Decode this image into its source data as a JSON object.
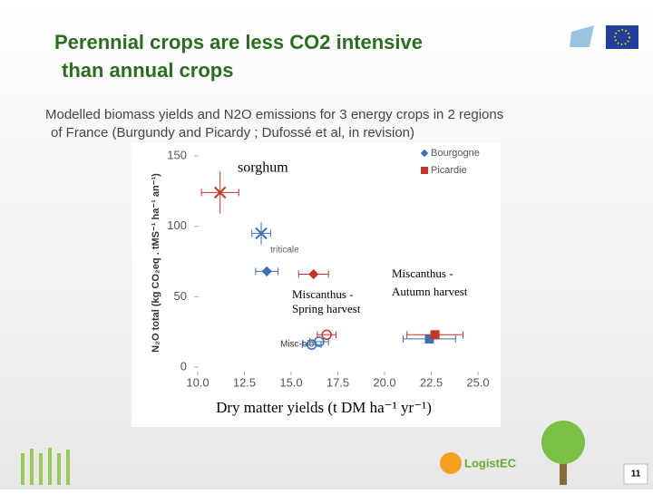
{
  "slide": {
    "title_lines": [
      "Perennial crops are less CO2 intensive",
      "than annual crops"
    ],
    "subtitle_lines": [
      "Modelled biomass yields and N2O emissions for 3 energy crops in 2 regions",
      "of France (Burgundy and Picardy ; Dufossé et al, in revision)"
    ],
    "logo_text": "LogistEC",
    "page_number": "11"
  },
  "chart_data": {
    "type": "scatter",
    "x_label": "Dry matter yields (t DM ha⁻¹ yr⁻¹)",
    "y_label": "N₂O total (kg CO₂eq . tMS⁻¹ ha⁻¹ an⁻¹)",
    "xlim": [
      10,
      25
    ],
    "ylim": [
      0,
      150
    ],
    "xticks": [
      {
        "value": 10,
        "label": "10.0"
      },
      {
        "value": 12.5,
        "label": "12.5"
      },
      {
        "value": 15,
        "label": "15.0"
      },
      {
        "value": 17.5,
        "label": "17.5"
      },
      {
        "value": 20,
        "label": "20.0"
      },
      {
        "value": 22.5,
        "label": "22.5"
      },
      {
        "value": 25,
        "label": "25.0"
      }
    ],
    "yticks": [
      0,
      50,
      100,
      150
    ],
    "legend": "top-right",
    "annotations": [
      "sorghum",
      "triticale",
      "Miscanthus -",
      "Spring harvest",
      "Miscanthus -",
      "Autumn harvest",
      "Misc-bio"
    ],
    "series": [
      {
        "name": "Bourgogne",
        "color": "#3b70b5",
        "x": [
          13.4,
          13.7,
          22.4,
          16.5,
          16.1
        ],
        "values": [
          95,
          68,
          20,
          18,
          16
        ],
        "xerr": [
          0.5,
          0.6,
          1.4,
          0.5,
          0.5
        ],
        "yerr": [
          8,
          null,
          null,
          null,
          null
        ],
        "markers": [
          "x",
          "diamond",
          "square",
          "circle",
          "circle"
        ]
      },
      {
        "name": "Picardie",
        "color": "#c0392b",
        "x": [
          11.2,
          16.2,
          22.7,
          16.9
        ],
        "values": [
          124,
          66,
          23,
          23
        ],
        "xerr": [
          1.0,
          0.8,
          1.5,
          0.5
        ],
        "yerr": [
          15,
          null,
          null,
          null
        ],
        "markers": [
          "x",
          "diamond",
          "square",
          "circle"
        ]
      }
    ]
  }
}
